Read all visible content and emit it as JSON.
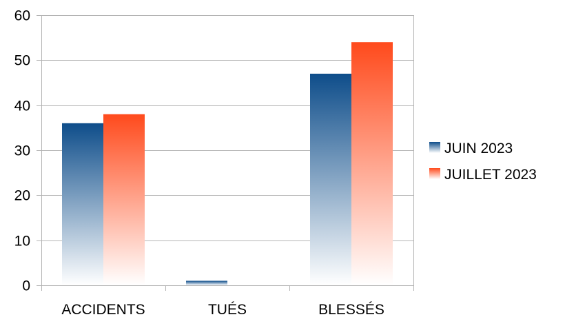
{
  "chart_data": {
    "type": "bar",
    "categories": [
      "ACCIDENTS",
      "TUÉS",
      "BLESSÉS"
    ],
    "series": [
      {
        "name": "JUIN 2023",
        "values": [
          36,
          1,
          47
        ],
        "color": "#0e4d8a"
      },
      {
        "name": "JUILLET 2023",
        "values": [
          38,
          0,
          54
        ],
        "color": "#ff4a1c"
      }
    ],
    "ylim": [
      0,
      60
    ],
    "yticks": [
      0,
      10,
      20,
      30,
      40,
      50,
      60
    ],
    "grid": true,
    "legend_position": "right",
    "title": "",
    "xlabel": "",
    "ylabel": ""
  }
}
